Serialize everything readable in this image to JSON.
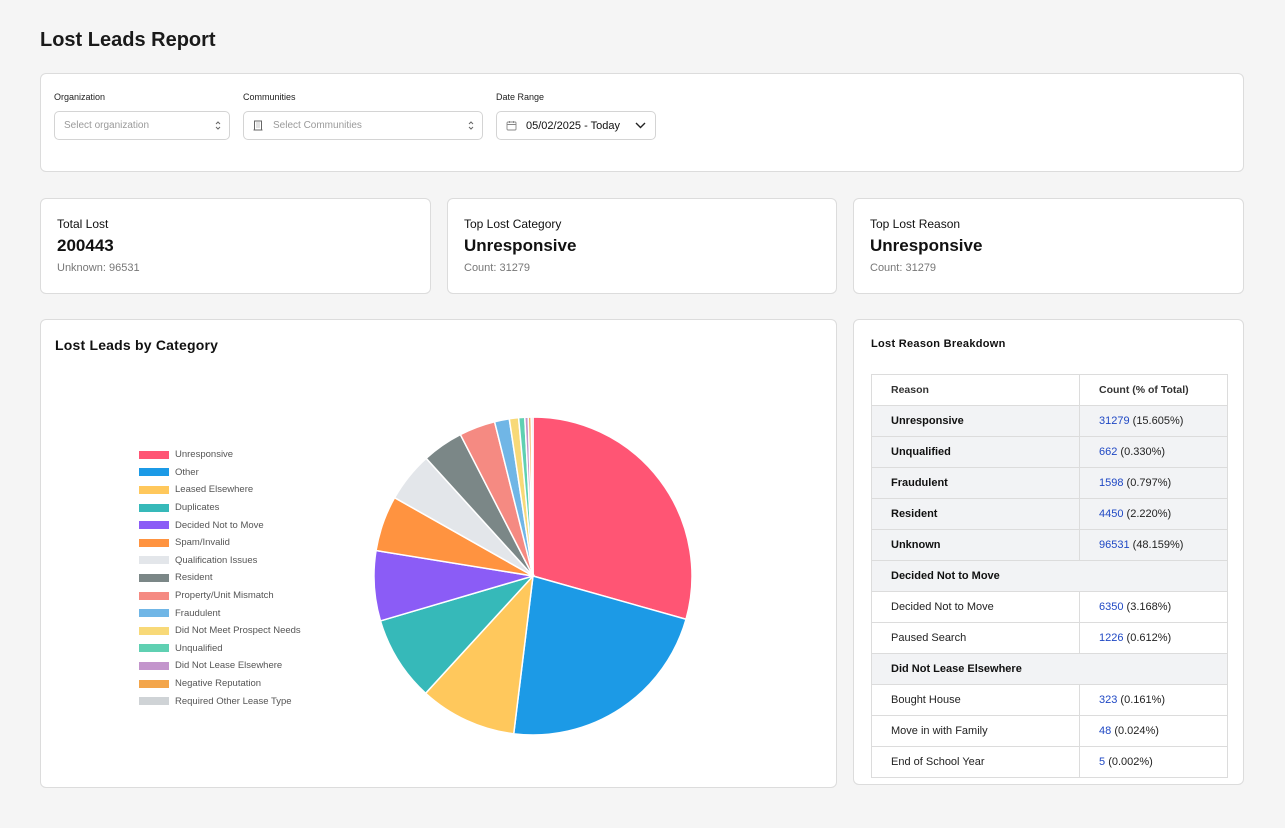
{
  "page": {
    "title": "Lost Leads Report"
  },
  "filters": {
    "organization": {
      "label": "Organization",
      "placeholder": "Select organization"
    },
    "communities": {
      "label": "Communities",
      "placeholder": "Select Communities"
    },
    "date_range": {
      "label": "Date Range",
      "value": "05/02/2025 - Today"
    }
  },
  "stats": [
    {
      "title": "Total Lost",
      "value": "200443",
      "sub": "Unknown: 96531"
    },
    {
      "title": "Top Lost Category",
      "value": "Unresponsive",
      "sub": "Count: 31279"
    },
    {
      "title": "Top Lost Reason",
      "value": "Unresponsive",
      "sub": "Count: 31279"
    }
  ],
  "chart_title": "Lost Leads by Category",
  "chart_data": {
    "type": "pie",
    "title": "Lost Leads by Category",
    "legend_position": "left",
    "slices": [
      {
        "label": "Unresponsive",
        "value": 31279,
        "color": "#ff5574"
      },
      {
        "label": "Other",
        "value": 24000,
        "color": "#1c9ae6"
      },
      {
        "label": "Leased Elsewhere",
        "value": 10500,
        "color": "#ffc85c"
      },
      {
        "label": "Duplicates",
        "value": 9200,
        "color": "#36b9b9"
      },
      {
        "label": "Decided Not to Move",
        "value": 7576,
        "color": "#8b5cf6"
      },
      {
        "label": "Spam/Invalid",
        "value": 6000,
        "color": "#ff9340"
      },
      {
        "label": "Qualification Issues",
        "value": 5400,
        "color": "#e3e6ea"
      },
      {
        "label": "Resident",
        "value": 4450,
        "color": "#7b8787"
      },
      {
        "label": "Property/Unit Mismatch",
        "value": 3900,
        "color": "#f58a82"
      },
      {
        "label": "Fraudulent",
        "value": 1598,
        "color": "#70b6e6"
      },
      {
        "label": "Did Not Meet Prospect Needs",
        "value": 1000,
        "color": "#f8d978"
      },
      {
        "label": "Unqualified",
        "value": 662,
        "color": "#5fd0b2"
      },
      {
        "label": "Did Not Lease Elsewhere",
        "value": 376,
        "color": "#c395cc"
      },
      {
        "label": "Negative Reputation",
        "value": 300,
        "color": "#f3a54a"
      },
      {
        "label": "Required Other Lease Type",
        "value": 200,
        "color": "#cfd3d6"
      }
    ]
  },
  "breakdown": {
    "title": "Lost Reason Breakdown",
    "headers": [
      "Reason",
      "Count (% of Total)"
    ],
    "rows": [
      {
        "type": "bold",
        "reason": "Unresponsive",
        "count": "31279",
        "pct": "(15.605%)"
      },
      {
        "type": "bold",
        "reason": "Unqualified",
        "count": "662",
        "pct": "(0.330%)"
      },
      {
        "type": "bold",
        "reason": "Fraudulent",
        "count": "1598",
        "pct": "(0.797%)"
      },
      {
        "type": "bold",
        "reason": "Resident",
        "count": "4450",
        "pct": "(2.220%)"
      },
      {
        "type": "bold",
        "reason": "Unknown",
        "count": "96531",
        "pct": "(48.159%)"
      },
      {
        "type": "group",
        "reason": "Decided Not to Move"
      },
      {
        "type": "norm",
        "reason": "Decided Not to Move",
        "count": "6350",
        "pct": "(3.168%)"
      },
      {
        "type": "norm",
        "reason": "Paused Search",
        "count": "1226",
        "pct": "(0.612%)"
      },
      {
        "type": "group",
        "reason": "Did Not Lease Elsewhere"
      },
      {
        "type": "norm",
        "reason": "Bought House",
        "count": "323",
        "pct": "(0.161%)"
      },
      {
        "type": "norm",
        "reason": "Move in with Family",
        "count": "48",
        "pct": "(0.024%)"
      },
      {
        "type": "norm",
        "reason": "End of School Year",
        "count": "5",
        "pct": "(0.002%)"
      }
    ]
  }
}
